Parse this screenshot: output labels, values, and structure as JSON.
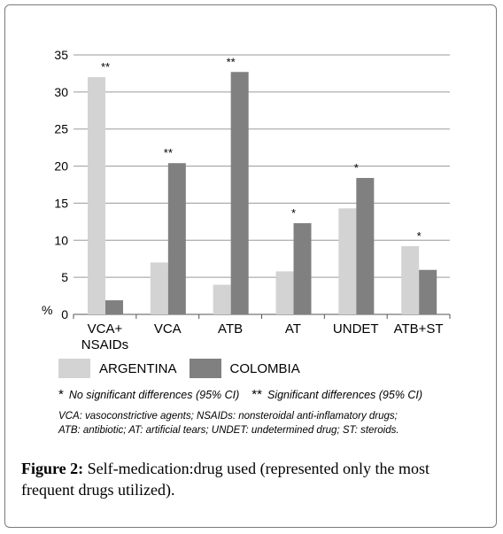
{
  "chart_data": {
    "type": "bar",
    "ylabel": "%",
    "ylim": [
      0,
      35
    ],
    "yticks": [
      0,
      5,
      10,
      15,
      20,
      25,
      30,
      35
    ],
    "grid": true,
    "categories": [
      [
        "VCA+",
        "NSAIDs"
      ],
      [
        "VCA"
      ],
      [
        "ATB"
      ],
      [
        "AT"
      ],
      [
        "UNDET"
      ],
      [
        "ATB+ST"
      ]
    ],
    "series": [
      {
        "name": "ARGENTINA",
        "color": "#d3d3d3",
        "values": [
          32,
          7,
          4,
          5.8,
          14.3,
          9.2
        ]
      },
      {
        "name": "COLOMBIA",
        "color": "#808080",
        "values": [
          1.9,
          20.4,
          32.7,
          12.3,
          18.4,
          6
        ]
      }
    ],
    "annotations": [
      "**",
      "**",
      "**",
      "*",
      "*",
      "*"
    ],
    "legend_position": "bottom"
  },
  "legend": {
    "items": [
      {
        "label": "ARGENTINA",
        "color": "#d3d3d3"
      },
      {
        "label": "COLOMBIA",
        "color": "#808080"
      }
    ]
  },
  "notes": {
    "single_mark": "*",
    "single_text": "No significant differences (95% CI)",
    "double_mark": "**",
    "double_text": "Significant differences (95% CI)",
    "abbr_line1": "VCA: vasoconstrictive agents; NSAIDs: nonsteroidal anti-inflamatory drugs;",
    "abbr_line2": "ATB: antibiotic; AT: artificial tears; UNDET: undetermined drug; ST: steroids."
  },
  "caption": {
    "label": "Figure 2:",
    "text": " Self-medication:drug used (represented only the most frequent drugs utilized)."
  }
}
